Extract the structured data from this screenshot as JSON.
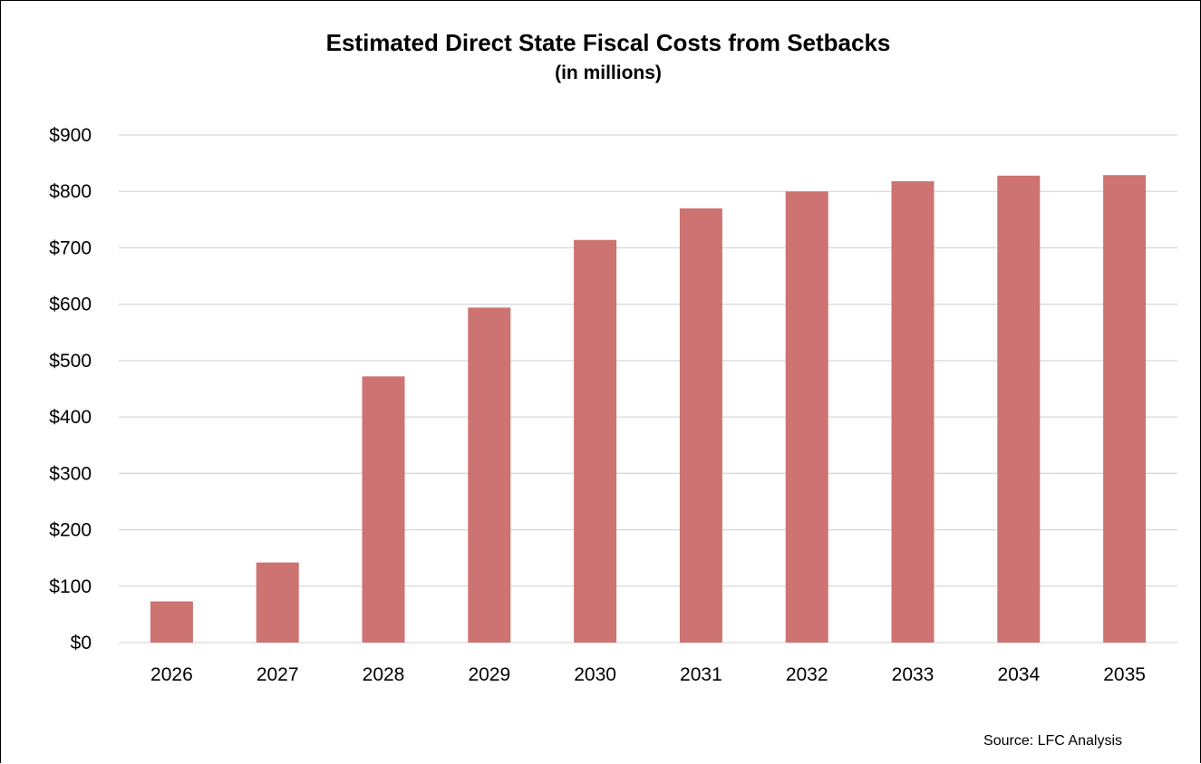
{
  "chart_data": {
    "type": "bar",
    "title": "Estimated Direct State Fiscal Costs from Setbacks",
    "subtitle": "(in millions)",
    "categories": [
      "2026",
      "2027",
      "2028",
      "2029",
      "2030",
      "2031",
      "2032",
      "2033",
      "2034",
      "2035"
    ],
    "values": [
      73,
      142,
      472,
      594,
      714,
      770,
      800,
      818,
      828,
      829
    ],
    "y_ticks": [
      "$0",
      "$100",
      "$200",
      "$300",
      "$400",
      "$500",
      "$600",
      "$700",
      "$800",
      "$900"
    ],
    "ylim": [
      0,
      900
    ],
    "ytick_step": 100,
    "grid": true,
    "legend": "none",
    "bar_color": "#cd7371",
    "gridline_color": "#d9d9d9",
    "source": "Source: LFC Analysis"
  }
}
